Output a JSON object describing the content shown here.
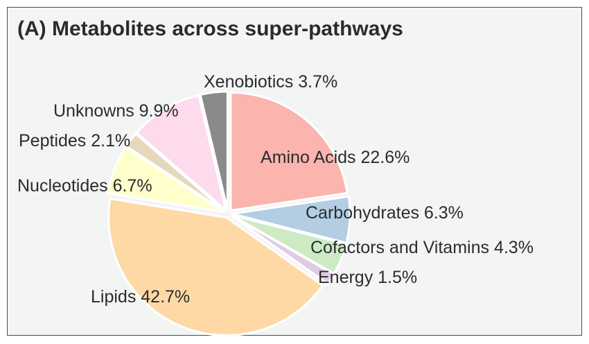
{
  "chart_data": {
    "type": "pie",
    "title": "(A) Metabolites across super-pathways",
    "slices": [
      {
        "label": "Amino Acids",
        "pct_label": "22.6%",
        "value": 22.6,
        "color": "#fbb4ae"
      },
      {
        "label": "Carbohydrates",
        "pct_label": "6.3%",
        "value": 6.3,
        "color": "#b3cde3"
      },
      {
        "label": "Cofactors and Vitamins",
        "pct_label": "4.3%",
        "value": 4.3,
        "color": "#ccebc5"
      },
      {
        "label": "Energy",
        "pct_label": "1.5%",
        "value": 1.5,
        "color": "#decbe4"
      },
      {
        "label": "Lipids",
        "pct_label": "42.7%",
        "value": 42.7,
        "color": "#fed9a6"
      },
      {
        "label": "Nucleotides",
        "pct_label": "6.7%",
        "value": 6.7,
        "color": "#ffffcc"
      },
      {
        "label": "Peptides",
        "pct_label": "2.1%",
        "value": 2.1,
        "color": "#e5d8bd"
      },
      {
        "label": "Unknowns",
        "pct_label": "9.9%",
        "value": 9.9,
        "color": "#fddaec"
      },
      {
        "label": "Xenobiotics",
        "pct_label": "3.7%",
        "value": 3.7,
        "color": "#8a8a8a"
      }
    ]
  }
}
